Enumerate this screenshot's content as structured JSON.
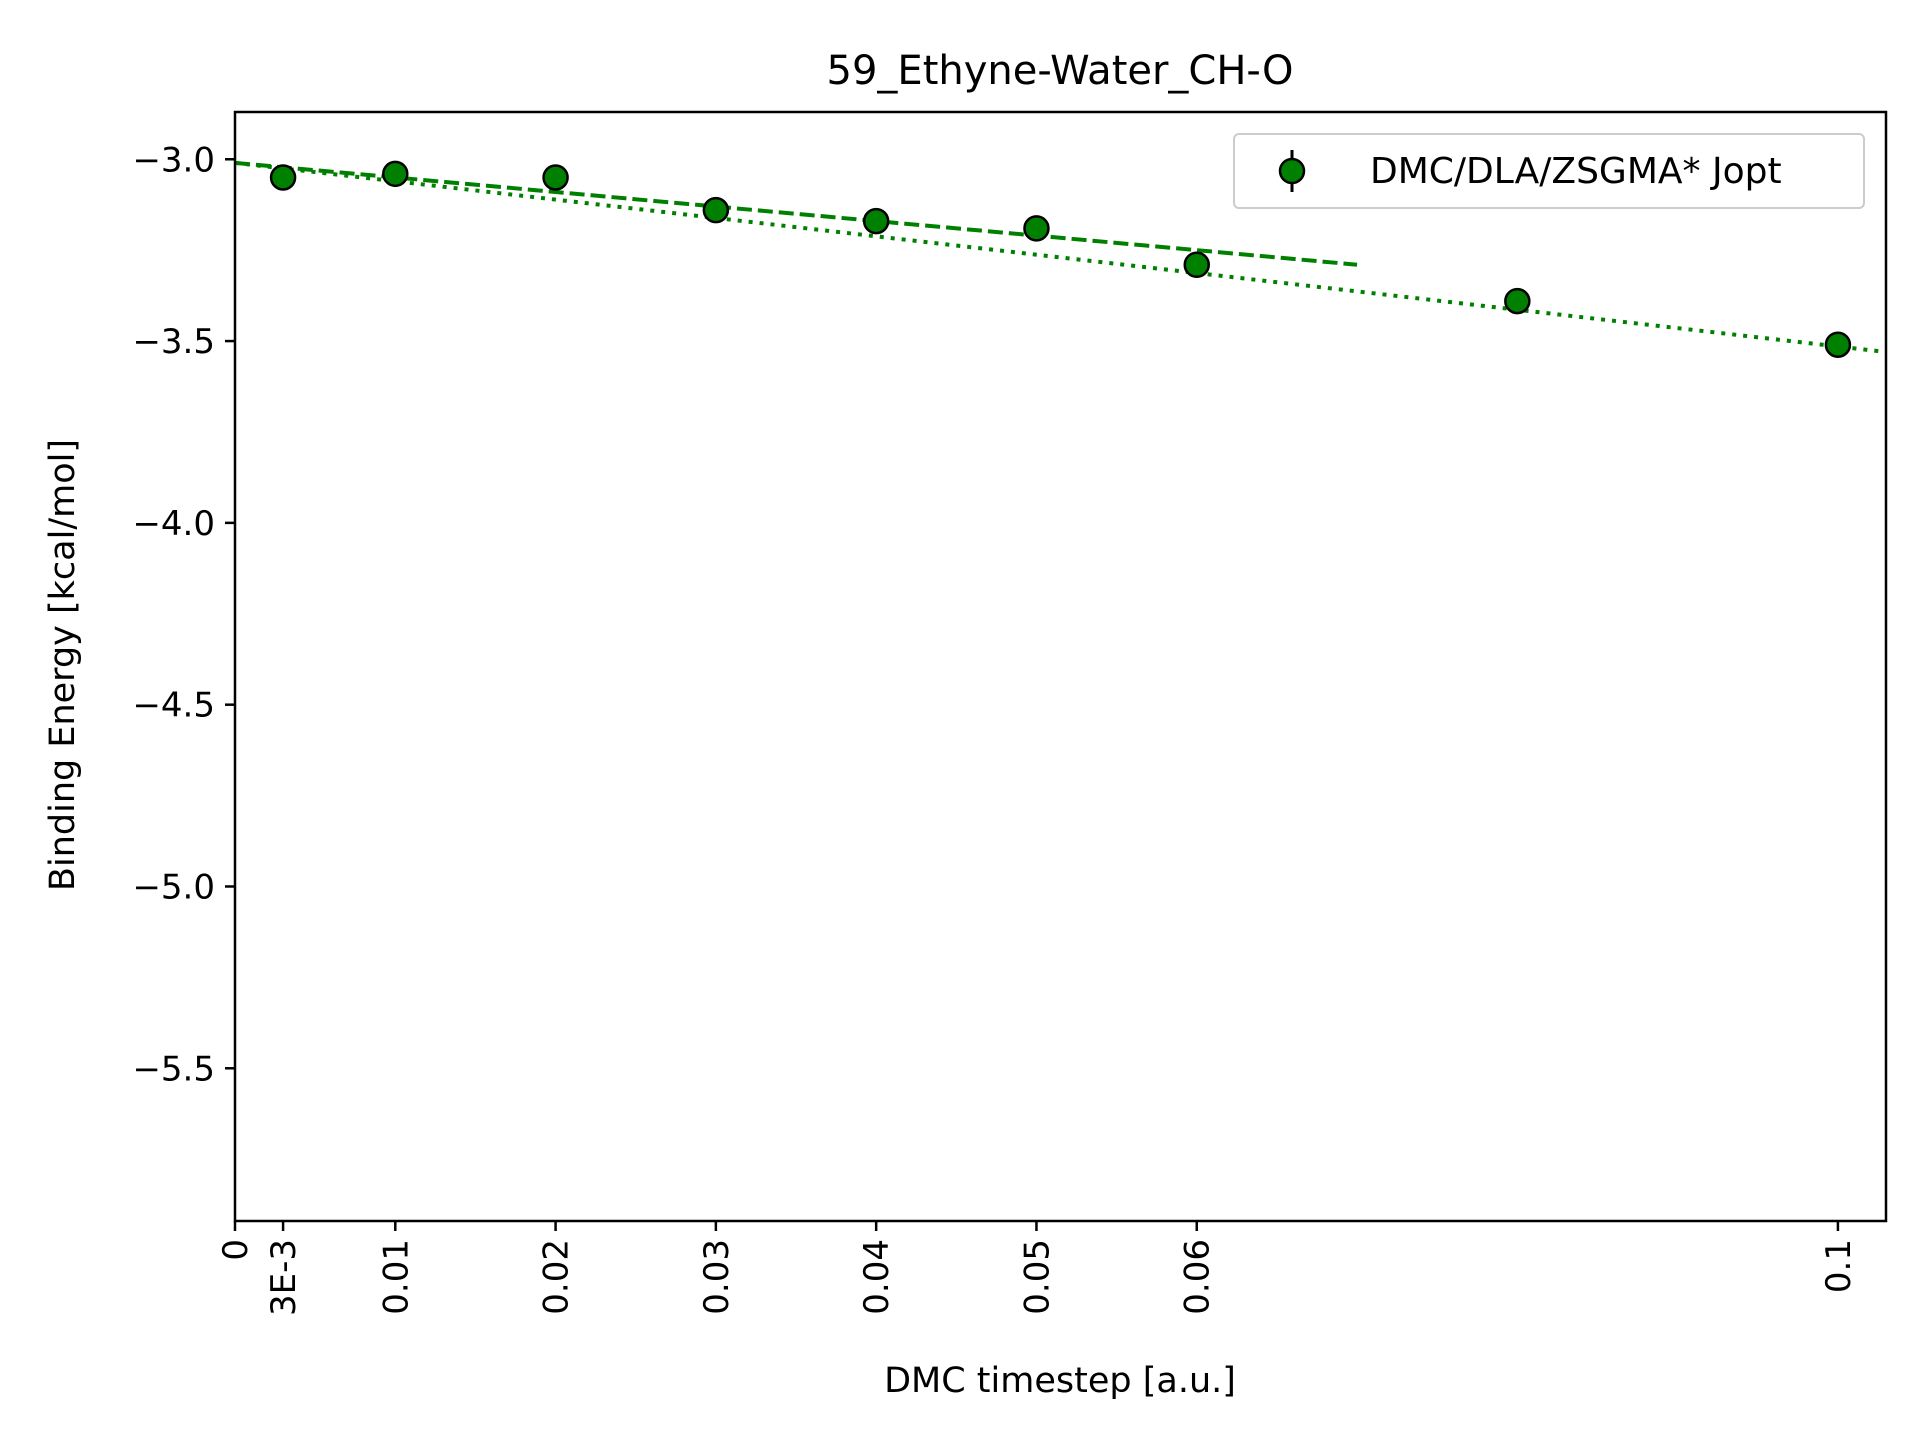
{
  "chart_data": {
    "type": "scatter",
    "title": "59_Ethyne-Water_CH-O",
    "xlabel": "DMC timestep [a.u.]",
    "ylabel": "Binding Energy [kcal/mol]",
    "xlim": [
      0,
      0.103
    ],
    "ylim": [
      -5.92,
      -2.87
    ],
    "x_ticks": [
      {
        "value": 0,
        "label": "0"
      },
      {
        "value": 0.003,
        "label": "3E-3"
      },
      {
        "value": 0.01,
        "label": "0.01"
      },
      {
        "value": 0.02,
        "label": "0.02"
      },
      {
        "value": 0.03,
        "label": "0.03"
      },
      {
        "value": 0.04,
        "label": "0.04"
      },
      {
        "value": 0.05,
        "label": "0.05"
      },
      {
        "value": 0.06,
        "label": "0.06"
      },
      {
        "value": 0.1,
        "label": "0.1"
      }
    ],
    "y_ticks": [
      {
        "value": -3.0,
        "label": "−3.0"
      },
      {
        "value": -3.5,
        "label": "−3.5"
      },
      {
        "value": -4.0,
        "label": "−4.0"
      },
      {
        "value": -4.5,
        "label": "−4.5"
      },
      {
        "value": -5.0,
        "label": "−5.0"
      },
      {
        "value": -5.5,
        "label": "−5.5"
      }
    ],
    "grid": false,
    "legend_position": "top-right",
    "series": [
      {
        "name": "DMC/DLA/ZSGMA* Jopt",
        "color": "#008000",
        "edge_color": "#000000",
        "marker": "circle",
        "x": [
          0.003,
          0.01,
          0.02,
          0.03,
          0.04,
          0.05,
          0.06,
          0.08,
          0.1
        ],
        "y": [
          -3.05,
          -3.04,
          -3.05,
          -3.14,
          -3.17,
          -3.19,
          -3.29,
          -3.39,
          -3.51
        ],
        "yerr": [
          0.02,
          0.02,
          0.02,
          0.02,
          0.02,
          0.02,
          0.02,
          0.02,
          0.03
        ]
      }
    ],
    "fit_lines": [
      {
        "style": "dashed",
        "color": "#008000",
        "x": [
          0,
          0.07
        ],
        "y": [
          -3.01,
          -3.29
        ]
      },
      {
        "style": "dotted",
        "color": "#008000",
        "x": [
          0,
          0.103
        ],
        "y": [
          -3.01,
          -3.53
        ]
      }
    ]
  }
}
